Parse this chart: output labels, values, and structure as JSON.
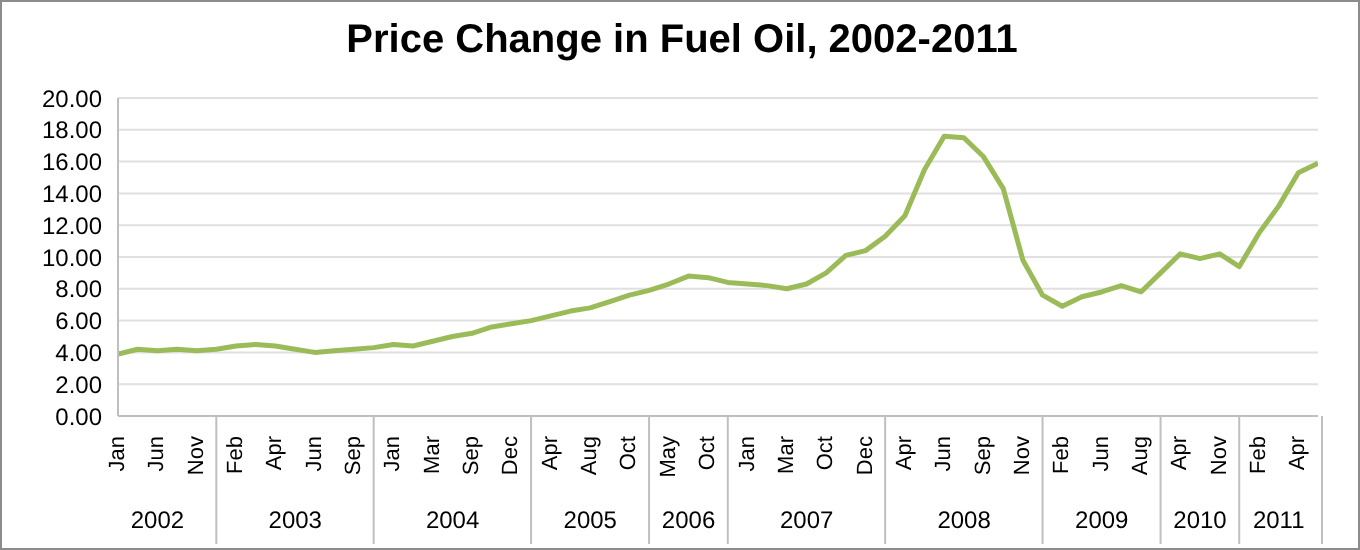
{
  "chart_data": {
    "type": "line",
    "title": "Price Change in Fuel Oil, 2002-2011",
    "categories": [
      "Jan",
      null,
      "Jun",
      null,
      "Nov",
      null,
      "Feb",
      null,
      "Apr",
      null,
      "Jun",
      null,
      "Sep",
      null,
      "Jan",
      null,
      "Mar",
      null,
      "Sep",
      null,
      "Dec",
      null,
      "Apr",
      null,
      "Aug",
      null,
      "Oct",
      null,
      "May",
      null,
      "Oct",
      null,
      "Jan",
      null,
      "Mar",
      null,
      "Oct",
      null,
      "Dec",
      null,
      "Apr",
      null,
      "Jun",
      null,
      "Sep",
      null,
      "Nov",
      null,
      "Feb",
      null,
      "Jun",
      null,
      "Aug",
      null,
      "Apr",
      null,
      "Nov",
      null,
      "Feb",
      null,
      "Apr",
      null
    ],
    "annotations": [
      "2002",
      "2003",
      "2004",
      "2005",
      "2006",
      "2007",
      "2008",
      "2009",
      "2010",
      "2011"
    ],
    "series": [
      {
        "color": "#9bbb59",
        "values": [
          3.9,
          4.2,
          4.1,
          4.2,
          4.1,
          4.2,
          4.4,
          4.5,
          4.4,
          4.2,
          4.0,
          4.1,
          4.2,
          4.3,
          4.5,
          4.4,
          4.7,
          5.0,
          5.2,
          5.6,
          5.8,
          6.0,
          6.3,
          6.6,
          6.8,
          7.2,
          7.6,
          7.9,
          8.3,
          8.8,
          8.7,
          8.4,
          8.3,
          8.2,
          8.0,
          8.3,
          9.0,
          10.1,
          10.4,
          11.3,
          12.6,
          15.5,
          17.6,
          17.5,
          16.3,
          14.3,
          9.8,
          7.6,
          6.9,
          7.5,
          7.8,
          8.2,
          7.8,
          9.0,
          10.2,
          9.9,
          10.2,
          9.4,
          11.5,
          13.2,
          15.3,
          15.9
        ]
      }
    ],
    "ylim": [
      0,
      20
    ],
    "yticks": [
      {
        "value": 0,
        "label": "0.00"
      },
      {
        "value": 2,
        "label": "2.00"
      },
      {
        "value": 4,
        "label": "4.00"
      },
      {
        "value": 6,
        "label": "6.00"
      },
      {
        "value": 8,
        "label": "8.00"
      },
      {
        "value": 10,
        "label": "10.00"
      },
      {
        "value": 12,
        "label": "12.00"
      },
      {
        "value": 14,
        "label": "14.00"
      },
      {
        "value": 16,
        "label": "16.00"
      },
      {
        "value": 18,
        "label": "18.00"
      },
      {
        "value": 20,
        "label": "20.00"
      }
    ],
    "grid": "y",
    "marker": "none",
    "line_style": "solid"
  }
}
